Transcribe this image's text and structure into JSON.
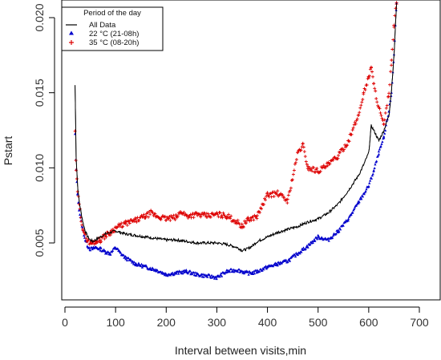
{
  "chart_data": {
    "type": "line",
    "title": "",
    "xlabel": "Interval between visits,min",
    "ylabel": "Pstart",
    "xlim": [
      0,
      700
    ],
    "ylim": [
      0.002,
      0.0205
    ],
    "xticks": [
      "0",
      "100",
      "200",
      "300",
      "400",
      "500",
      "600",
      "700"
    ],
    "yticks": [
      "0.005",
      "0.010",
      "0.015",
      "0.020"
    ],
    "grid": false,
    "legend": {
      "title": "Period of the day",
      "placement": "top-left"
    },
    "series": [
      {
        "name": "All Data",
        "style": "line",
        "color": "#000000",
        "x": [
          20,
          22,
          25,
          28,
          32,
          36,
          40,
          45,
          50,
          55,
          60,
          70,
          80,
          90,
          100,
          110,
          120,
          140,
          160,
          180,
          200,
          220,
          240,
          260,
          280,
          300,
          320,
          340,
          350,
          360,
          370,
          380,
          400,
          420,
          440,
          460,
          480,
          500,
          520,
          540,
          560,
          580,
          590,
          600,
          605,
          610,
          620,
          630,
          640,
          645,
          650,
          655
        ],
        "y": [
          0.0155,
          0.0108,
          0.0088,
          0.0078,
          0.007,
          0.0063,
          0.0058,
          0.0054,
          0.0052,
          0.0051,
          0.0052,
          0.0054,
          0.0056,
          0.0057,
          0.0058,
          0.0057,
          0.0056,
          0.0055,
          0.0054,
          0.0053,
          0.0052,
          0.0052,
          0.0051,
          0.005,
          0.005,
          0.005,
          0.0049,
          0.0047,
          0.0045,
          0.0046,
          0.0048,
          0.0051,
          0.0054,
          0.0057,
          0.0059,
          0.0061,
          0.0064,
          0.0066,
          0.007,
          0.0076,
          0.0085,
          0.0095,
          0.0102,
          0.011,
          0.0128,
          0.0125,
          0.0118,
          0.0125,
          0.0135,
          0.0152,
          0.0175,
          0.021
        ]
      },
      {
        "name": "22 °C (21-08h)",
        "style": "triangle",
        "color": "#0000cc",
        "x": [
          20,
          22,
          25,
          28,
          32,
          36,
          40,
          45,
          50,
          55,
          60,
          70,
          80,
          90,
          100,
          110,
          120,
          140,
          160,
          180,
          200,
          220,
          240,
          260,
          280,
          300,
          320,
          340,
          360,
          370,
          380,
          400,
          420,
          440,
          460,
          480,
          500,
          520,
          540,
          560,
          580,
          600,
          610,
          620,
          630,
          640,
          645,
          650,
          655
        ],
        "y": [
          0.0122,
          0.0098,
          0.0082,
          0.0072,
          0.0064,
          0.0058,
          0.0052,
          0.0048,
          0.0046,
          0.0046,
          0.0047,
          0.0046,
          0.0044,
          0.0043,
          0.0047,
          0.0043,
          0.004,
          0.0036,
          0.0034,
          0.0032,
          0.0029,
          0.003,
          0.0031,
          0.0029,
          0.0028,
          0.0027,
          0.0031,
          0.0032,
          0.003,
          0.003,
          0.0031,
          0.0034,
          0.0036,
          0.0038,
          0.0043,
          0.0048,
          0.0054,
          0.0052,
          0.0058,
          0.0066,
          0.0077,
          0.0088,
          0.0098,
          0.011,
          0.012,
          0.0138,
          0.015,
          0.0175,
          0.021
        ]
      },
      {
        "name": "35 °C (08-20h)",
        "style": "plus",
        "color": "#dd0000",
        "x": [
          20,
          22,
          25,
          28,
          32,
          36,
          40,
          45,
          50,
          55,
          60,
          70,
          80,
          90,
          100,
          120,
          140,
          160,
          170,
          180,
          200,
          220,
          230,
          240,
          260,
          280,
          300,
          320,
          340,
          350,
          360,
          380,
          400,
          420,
          440,
          460,
          470,
          480,
          500,
          520,
          540,
          560,
          580,
          590,
          600,
          605,
          610,
          620,
          630,
          640,
          645,
          650,
          655
        ],
        "y": [
          0.0125,
          0.0098,
          0.0085,
          0.0075,
          0.0066,
          0.0059,
          0.0054,
          0.0052,
          0.005,
          0.005,
          0.0051,
          0.0052,
          0.0055,
          0.0057,
          0.006,
          0.0063,
          0.0065,
          0.0068,
          0.007,
          0.0068,
          0.0066,
          0.0067,
          0.0071,
          0.0068,
          0.0069,
          0.0068,
          0.0069,
          0.0068,
          0.0064,
          0.0061,
          0.0065,
          0.0068,
          0.0082,
          0.0083,
          0.0078,
          0.011,
          0.0115,
          0.01,
          0.0098,
          0.0102,
          0.0108,
          0.0118,
          0.0135,
          0.015,
          0.016,
          0.0168,
          0.0155,
          0.014,
          0.0128,
          0.015,
          0.017,
          0.0195,
          0.021
        ]
      }
    ]
  }
}
